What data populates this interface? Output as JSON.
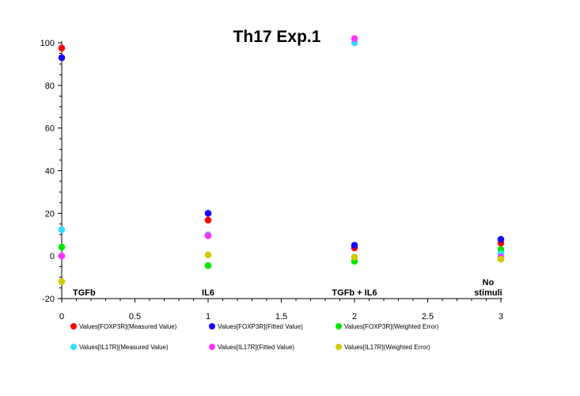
{
  "chart_data": {
    "type": "scatter",
    "title": "Th17 Exp.1",
    "xlabel": "",
    "ylabel": "",
    "xlim": [
      0,
      3
    ],
    "ylim": [
      -20,
      100
    ],
    "xticks": [
      "0",
      "0.5",
      "1",
      "1.5",
      "2",
      "2.5",
      "3"
    ],
    "yticks": [
      "-20",
      "0",
      "20",
      "40",
      "60",
      "80",
      "100"
    ],
    "grid": false,
    "legend_position": "bottom",
    "category_annotations": [
      {
        "x": 0,
        "text": [
          "TGFb"
        ]
      },
      {
        "x": 1,
        "text": [
          "IL6"
        ]
      },
      {
        "x": 2,
        "text": [
          "TGFb + IL6"
        ]
      },
      {
        "x": 3,
        "text": [
          "No",
          "stimuli"
        ]
      }
    ],
    "series": [
      {
        "name": "Values[FOXP3R](Measured Value)",
        "color": "#ff0000",
        "points": [
          [
            0,
            97.5
          ],
          [
            1,
            16.8
          ],
          [
            2,
            3.8
          ],
          [
            3,
            6.0
          ]
        ]
      },
      {
        "name": "Values[FOXP3R](Fitted Value)",
        "color": "#1a00ff",
        "points": [
          [
            0,
            93.0
          ],
          [
            1,
            20.0
          ],
          [
            2,
            5.0
          ],
          [
            3,
            7.8
          ]
        ]
      },
      {
        "name": "Values[FOXP3R](Weighted Error)",
        "color": "#00e600",
        "points": [
          [
            0,
            4.2
          ],
          [
            1,
            -4.5
          ],
          [
            2,
            -2.5
          ],
          [
            3,
            3.0
          ]
        ]
      },
      {
        "name": "Values[IL17R](Measured Value)",
        "color": "#33ddff",
        "points": [
          [
            0,
            12.3
          ],
          [
            1,
            10.0
          ],
          [
            2,
            100.0
          ],
          [
            3,
            1.0
          ]
        ]
      },
      {
        "name": "Values[IL17R](Fitted Value)",
        "color": "#ff33ff",
        "points": [
          [
            0,
            0.0
          ],
          [
            1,
            9.5
          ],
          [
            2,
            102.0
          ],
          [
            3,
            -0.5
          ]
        ]
      },
      {
        "name": "Values[IL17R](Weighted Error)",
        "color": "#cccc00",
        "points": [
          [
            0,
            -12.0
          ],
          [
            1,
            0.5
          ],
          [
            2,
            -0.5
          ],
          [
            3,
            -1.5
          ]
        ]
      }
    ]
  }
}
